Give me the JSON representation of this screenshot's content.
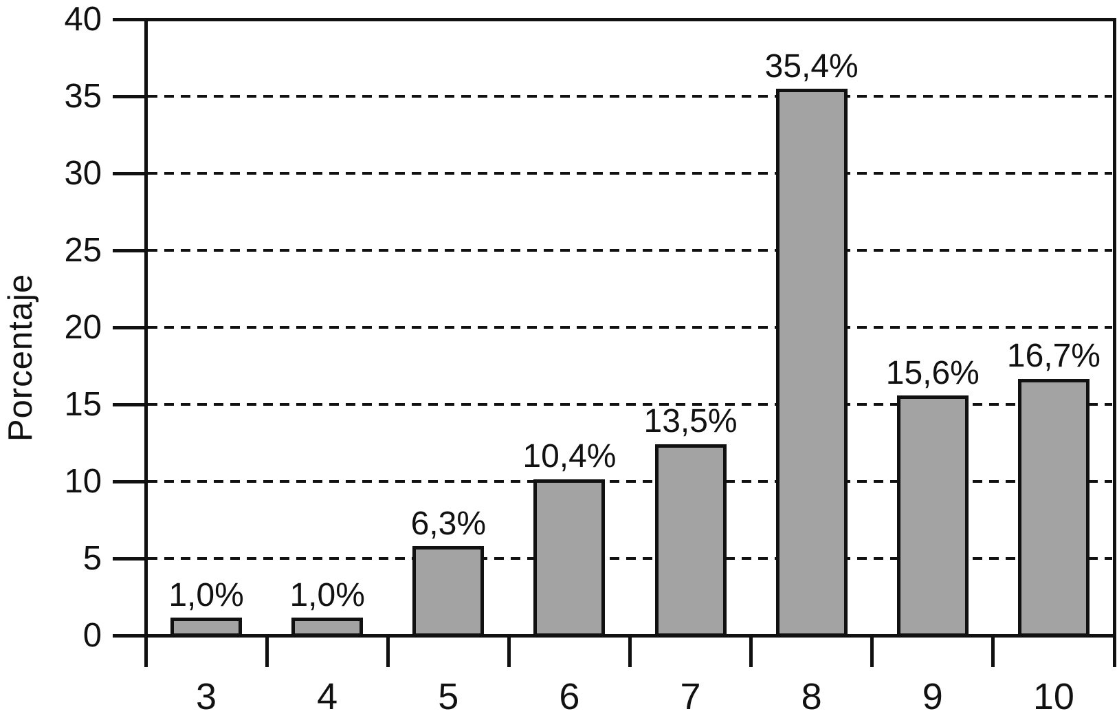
{
  "chart_data": {
    "type": "bar",
    "title": "",
    "xlabel": "",
    "ylabel": "Porcentaje",
    "categories": [
      "3",
      "4",
      "5",
      "6",
      "7",
      "8",
      "9",
      "10"
    ],
    "values": [
      1.0,
      1.0,
      6.3,
      10.4,
      13.5,
      35.4,
      15.6,
      16.7
    ],
    "bar_labels": [
      "1,0%",
      "1,0%",
      "6,3%",
      "10,4%",
      "13,5%",
      "35,4%",
      "15,6%",
      "16,7%"
    ],
    "drawn_values": [
      1.03,
      1.03,
      5.67,
      10.04,
      12.32,
      35.36,
      15.45,
      16.56
    ],
    "ylim": [
      0,
      40
    ],
    "yticks": [
      0,
      5,
      10,
      15,
      20,
      25,
      30,
      35,
      40
    ],
    "grid": "horizontal dashed lines at 5 through 35",
    "legend_position": "none",
    "bar_color": "#a3a3a3",
    "line_color": "#111111",
    "background_color": "#ffffff"
  }
}
